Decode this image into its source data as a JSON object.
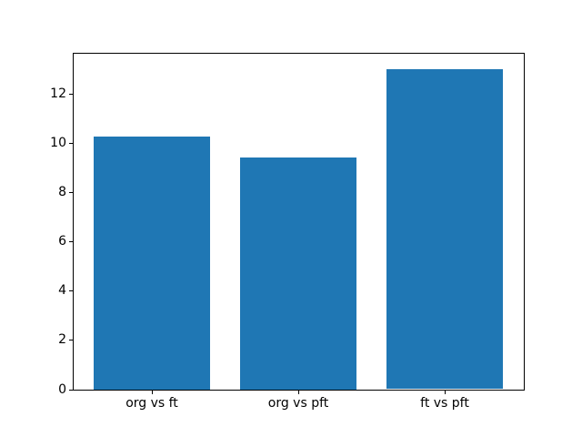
{
  "chart_data": {
    "type": "bar",
    "title": "",
    "xlabel": "",
    "ylabel": "",
    "categories": [
      "org vs ft",
      "org vs pft",
      "ft vs pft"
    ],
    "values": [
      10.25,
      9.4,
      13.0
    ],
    "bar_color": "#1f77b4",
    "bar_width": 0.8,
    "xlim": [
      -0.54,
      2.54
    ],
    "ylim": [
      0,
      13.65
    ],
    "yticks": [
      0,
      2,
      4,
      6,
      8,
      10,
      12
    ],
    "grid": "off",
    "legend": "none",
    "spine_color": "#000000",
    "background_color": "#ffffff"
  }
}
